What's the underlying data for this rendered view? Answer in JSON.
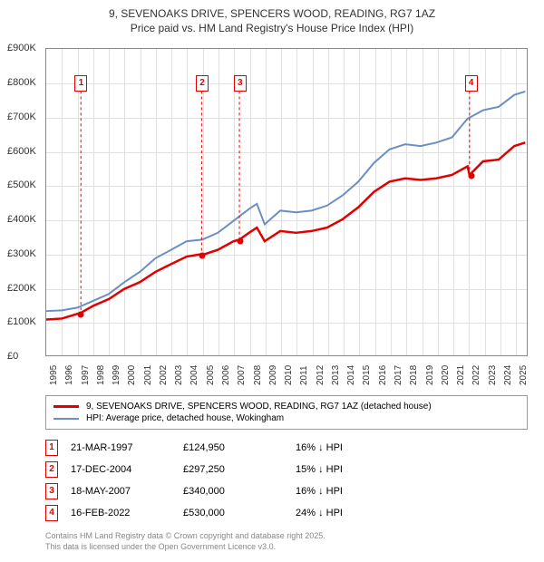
{
  "title_line1": "9, SEVENOAKS DRIVE, SPENCERS WOOD, READING, RG7 1AZ",
  "title_line2": "Price paid vs. HM Land Registry's House Price Index (HPI)",
  "chart": {
    "type": "line",
    "x_min": 1995,
    "x_max": 2025.8,
    "y_min": 0,
    "y_max": 900000,
    "y_ticks": [
      0,
      100000,
      200000,
      300000,
      400000,
      500000,
      600000,
      700000,
      800000,
      900000
    ],
    "y_tick_labels": [
      "£0",
      "£100K",
      "£200K",
      "£300K",
      "£400K",
      "£500K",
      "£600K",
      "£700K",
      "£800K",
      "£900K"
    ],
    "x_ticks": [
      1995,
      1996,
      1997,
      1998,
      1999,
      2000,
      2001,
      2002,
      2003,
      2004,
      2005,
      2006,
      2007,
      2008,
      2009,
      2010,
      2011,
      2012,
      2013,
      2014,
      2015,
      2016,
      2017,
      2018,
      2019,
      2020,
      2021,
      2022,
      2023,
      2024,
      2025
    ],
    "background_color": "#ffffff",
    "grid_color": "#e0e0e0",
    "series": [
      {
        "name": "property",
        "color": "#e00000",
        "width": 2.5,
        "points": [
          [
            1995,
            105000
          ],
          [
            1996,
            108000
          ],
          [
            1997.22,
            124950
          ],
          [
            1998,
            145000
          ],
          [
            1999,
            165000
          ],
          [
            2000,
            195000
          ],
          [
            2001,
            215000
          ],
          [
            2002,
            245000
          ],
          [
            2003,
            268000
          ],
          [
            2004,
            290000
          ],
          [
            2004.96,
            297250
          ],
          [
            2005,
            295000
          ],
          [
            2006,
            310000
          ],
          [
            2007,
            335000
          ],
          [
            2007.38,
            340000
          ],
          [
            2008,
            360000
          ],
          [
            2008.5,
            375000
          ],
          [
            2009,
            335000
          ],
          [
            2010,
            365000
          ],
          [
            2011,
            360000
          ],
          [
            2012,
            365000
          ],
          [
            2013,
            375000
          ],
          [
            2014,
            400000
          ],
          [
            2015,
            435000
          ],
          [
            2016,
            480000
          ],
          [
            2017,
            510000
          ],
          [
            2018,
            520000
          ],
          [
            2019,
            515000
          ],
          [
            2020,
            520000
          ],
          [
            2021,
            530000
          ],
          [
            2022,
            555000
          ],
          [
            2022.13,
            530000
          ],
          [
            2023,
            570000
          ],
          [
            2024,
            575000
          ],
          [
            2025,
            615000
          ],
          [
            2025.7,
            625000
          ]
        ]
      },
      {
        "name": "hpi",
        "color": "#6a8fc5",
        "width": 2,
        "points": [
          [
            1995,
            130000
          ],
          [
            1996,
            132000
          ],
          [
            1997,
            140000
          ],
          [
            1998,
            160000
          ],
          [
            1999,
            180000
          ],
          [
            2000,
            215000
          ],
          [
            2001,
            245000
          ],
          [
            2002,
            285000
          ],
          [
            2003,
            310000
          ],
          [
            2004,
            335000
          ],
          [
            2005,
            340000
          ],
          [
            2006,
            360000
          ],
          [
            2007,
            395000
          ],
          [
            2008,
            430000
          ],
          [
            2008.5,
            445000
          ],
          [
            2009,
            385000
          ],
          [
            2010,
            425000
          ],
          [
            2011,
            420000
          ],
          [
            2012,
            425000
          ],
          [
            2013,
            440000
          ],
          [
            2014,
            470000
          ],
          [
            2015,
            510000
          ],
          [
            2016,
            565000
          ],
          [
            2017,
            605000
          ],
          [
            2018,
            620000
          ],
          [
            2019,
            615000
          ],
          [
            2020,
            625000
          ],
          [
            2021,
            640000
          ],
          [
            2022,
            695000
          ],
          [
            2023,
            720000
          ],
          [
            2024,
            730000
          ],
          [
            2025,
            765000
          ],
          [
            2025.7,
            775000
          ]
        ]
      }
    ],
    "markers": [
      {
        "n": "1",
        "x": 1997.22,
        "y": 124950,
        "box_y": 800000
      },
      {
        "n": "2",
        "x": 2004.96,
        "y": 297250,
        "box_y": 800000
      },
      {
        "n": "3",
        "x": 2007.38,
        "y": 340000,
        "box_y": 800000
      },
      {
        "n": "4",
        "x": 2022.13,
        "y": 530000,
        "box_y": 800000
      }
    ]
  },
  "legend": {
    "items": [
      {
        "color": "#e00000",
        "width": 2.5,
        "label": "9, SEVENOAKS DRIVE, SPENCERS WOOD, READING, RG7 1AZ (detached house)"
      },
      {
        "color": "#6a8fc5",
        "width": 2,
        "label": "HPI: Average price, detached house, Wokingham"
      }
    ]
  },
  "transactions": [
    {
      "n": "1",
      "date": "21-MAR-1997",
      "price": "£124,950",
      "delta": "16% ↓ HPI"
    },
    {
      "n": "2",
      "date": "17-DEC-2004",
      "price": "£297,250",
      "delta": "15% ↓ HPI"
    },
    {
      "n": "3",
      "date": "18-MAY-2007",
      "price": "£340,000",
      "delta": "16% ↓ HPI"
    },
    {
      "n": "4",
      "date": "16-FEB-2022",
      "price": "£530,000",
      "delta": "24% ↓ HPI"
    }
  ],
  "footer_line1": "Contains HM Land Registry data © Crown copyright and database right 2025.",
  "footer_line2": "This data is licensed under the Open Government Licence v3.0."
}
